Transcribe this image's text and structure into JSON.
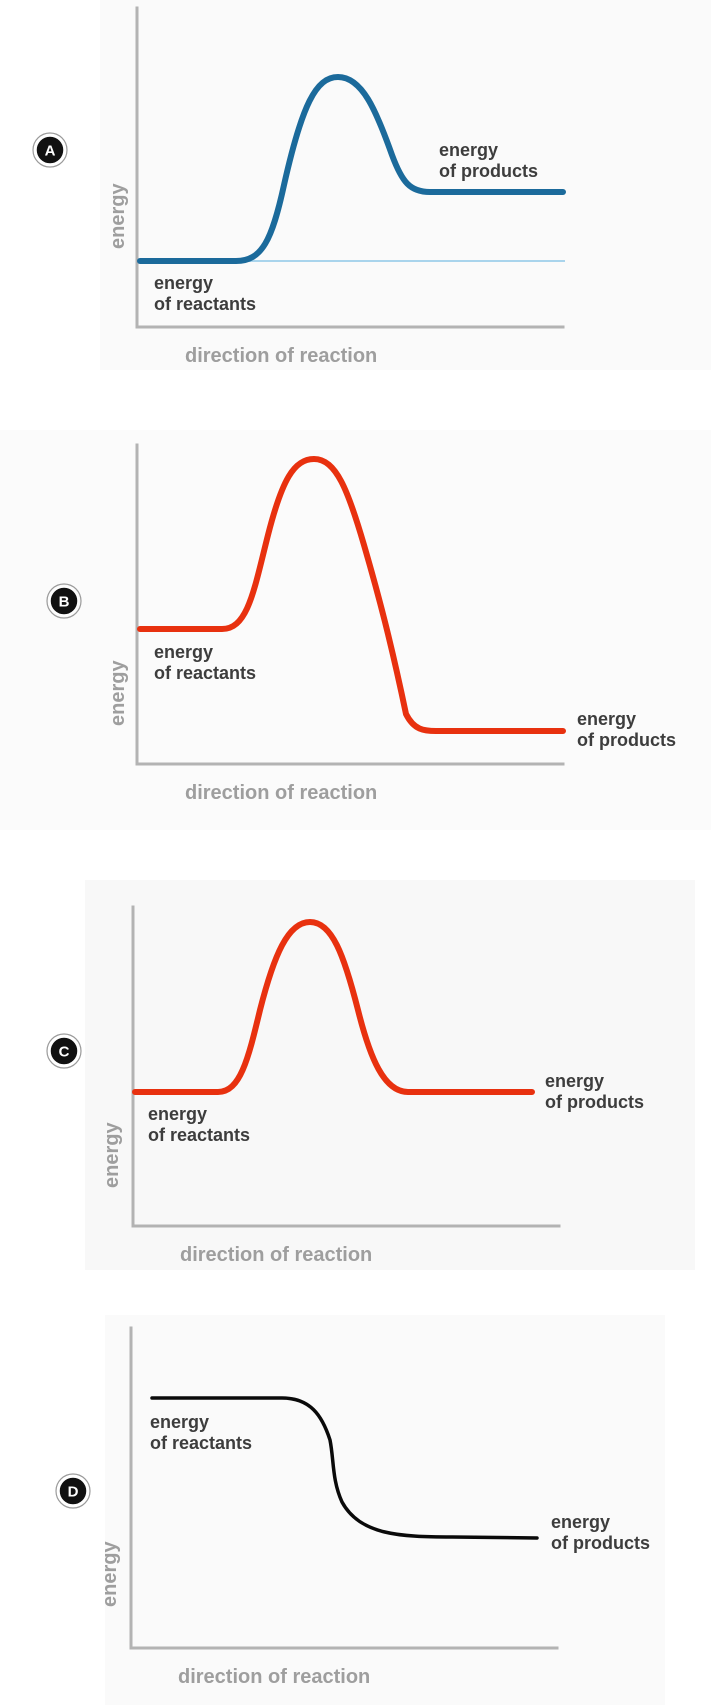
{
  "diagrams": [
    {
      "badge": "A",
      "curve_color": "#1b6a9b",
      "reference_line_color": "#a9d4ec",
      "energy_label": "energy",
      "direction_label": "direction of reaction",
      "reactants_label_line1": "energy",
      "reactants_label_line2": "of reactants",
      "products_label_line1": "energy",
      "products_label_line2": "of products"
    },
    {
      "badge": "B",
      "curve_color": "#e8310f",
      "energy_label": "energy",
      "direction_label": "direction of reaction",
      "reactants_label_line1": "energy",
      "reactants_label_line2": "of reactants",
      "products_label_line1": "energy",
      "products_label_line2": "of products"
    },
    {
      "badge": "C",
      "curve_color": "#e8310f",
      "energy_label": "energy",
      "direction_label": "direction of reaction",
      "reactants_label_line1": "energy",
      "reactants_label_line2": "of reactants",
      "products_label_line1": "energy",
      "products_label_line2": "of products"
    },
    {
      "badge": "D",
      "curve_color": "#0a0a0a",
      "energy_label": "energy",
      "direction_label": "direction of reaction",
      "reactants_label_line1": "energy",
      "reactants_label_line2": "of reactants",
      "products_label_line1": "energy",
      "products_label_line2": "of products"
    }
  ]
}
